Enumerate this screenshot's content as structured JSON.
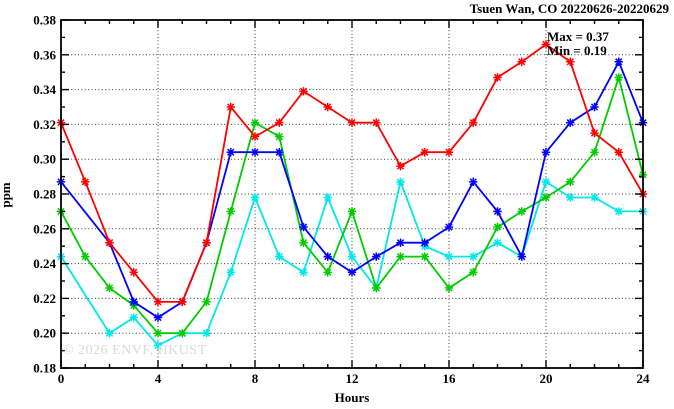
{
  "header": {
    "title": "Tsuen Wan, CO 20220626-20220629"
  },
  "annotation": {
    "max_label": "Max = 0.37",
    "min_label": "Min = 0.19"
  },
  "watermark_text": "© 2026 ENVF, HKUST",
  "chart_data": {
    "type": "line",
    "title": "Tsuen Wan, CO 20220626-20220629",
    "xlabel": "Hours",
    "ylabel": "ppm",
    "xlim": [
      0,
      24
    ],
    "ylim": [
      0.18,
      0.38
    ],
    "x_major_tick_step": 4,
    "x_minor_tick_step": 1,
    "y_major_tick_step": 0.02,
    "y_minor_tick_step": 0.01,
    "x_tick_labels": [
      "0",
      "4",
      "8",
      "12",
      "16",
      "20",
      "24"
    ],
    "y_tick_labels": [
      "0.18",
      "0.20",
      "0.22",
      "0.24",
      "0.26",
      "0.28",
      "0.30",
      "0.32",
      "0.34",
      "0.36",
      "0.38"
    ],
    "grid": {
      "style": "dotted",
      "color": "#3a3a3a",
      "at_x": [
        4,
        8,
        12,
        16,
        20
      ],
      "at_y": [
        0.2,
        0.22,
        0.24,
        0.26,
        0.28,
        0.3,
        0.32,
        0.34,
        0.36
      ]
    },
    "legend": "none",
    "marker": "asterisk",
    "frame_color": "#000000",
    "x": [
      0,
      1,
      2,
      3,
      4,
      5,
      6,
      7,
      8,
      9,
      10,
      11,
      12,
      13,
      14,
      15,
      16,
      17,
      18,
      19,
      20,
      21,
      22,
      23,
      24
    ],
    "series": [
      {
        "name": "day-1-red",
        "color": "#ff0000",
        "values": [
          0.321,
          0.287,
          0.252,
          0.235,
          0.218,
          0.218,
          0.252,
          0.33,
          0.313,
          0.321,
          0.339,
          0.33,
          0.321,
          0.321,
          0.296,
          0.304,
          0.304,
          0.321,
          0.347,
          0.356,
          0.366,
          0.356,
          0.315,
          0.304,
          0.28
        ]
      },
      {
        "name": "day-2-blue",
        "color": "#0000ff",
        "values": [
          0.287,
          null,
          0.252,
          0.218,
          0.209,
          0.218,
          0.252,
          0.304,
          0.304,
          0.304,
          0.261,
          0.244,
          0.235,
          0.244,
          0.252,
          0.252,
          0.261,
          0.287,
          0.27,
          0.244,
          0.304,
          0.321,
          0.33,
          0.356,
          0.321
        ]
      },
      {
        "name": "day-3-green",
        "color": "#00cc00",
        "values": [
          0.27,
          0.244,
          0.226,
          0.216,
          0.2,
          0.2,
          0.218,
          0.27,
          0.321,
          0.313,
          0.252,
          0.235,
          0.27,
          0.226,
          0.244,
          0.244,
          0.226,
          0.235,
          0.261,
          0.27,
          0.278,
          0.287,
          0.304,
          0.347,
          0.291
        ]
      },
      {
        "name": "day-4-cyan",
        "color": "#00e8e8",
        "values": [
          0.244,
          null,
          0.2,
          0.209,
          0.193,
          0.2,
          0.2,
          0.235,
          0.278,
          0.244,
          0.235,
          0.278,
          0.244,
          0.226,
          0.287,
          0.25,
          0.244,
          0.244,
          0.252,
          0.244,
          0.287,
          0.278,
          0.278,
          0.27,
          0.27
        ]
      }
    ],
    "annotations": [
      {
        "text": "Max = 0.37",
        "position": "top-right"
      },
      {
        "text": "Min = 0.19",
        "position": "top-right"
      }
    ]
  }
}
